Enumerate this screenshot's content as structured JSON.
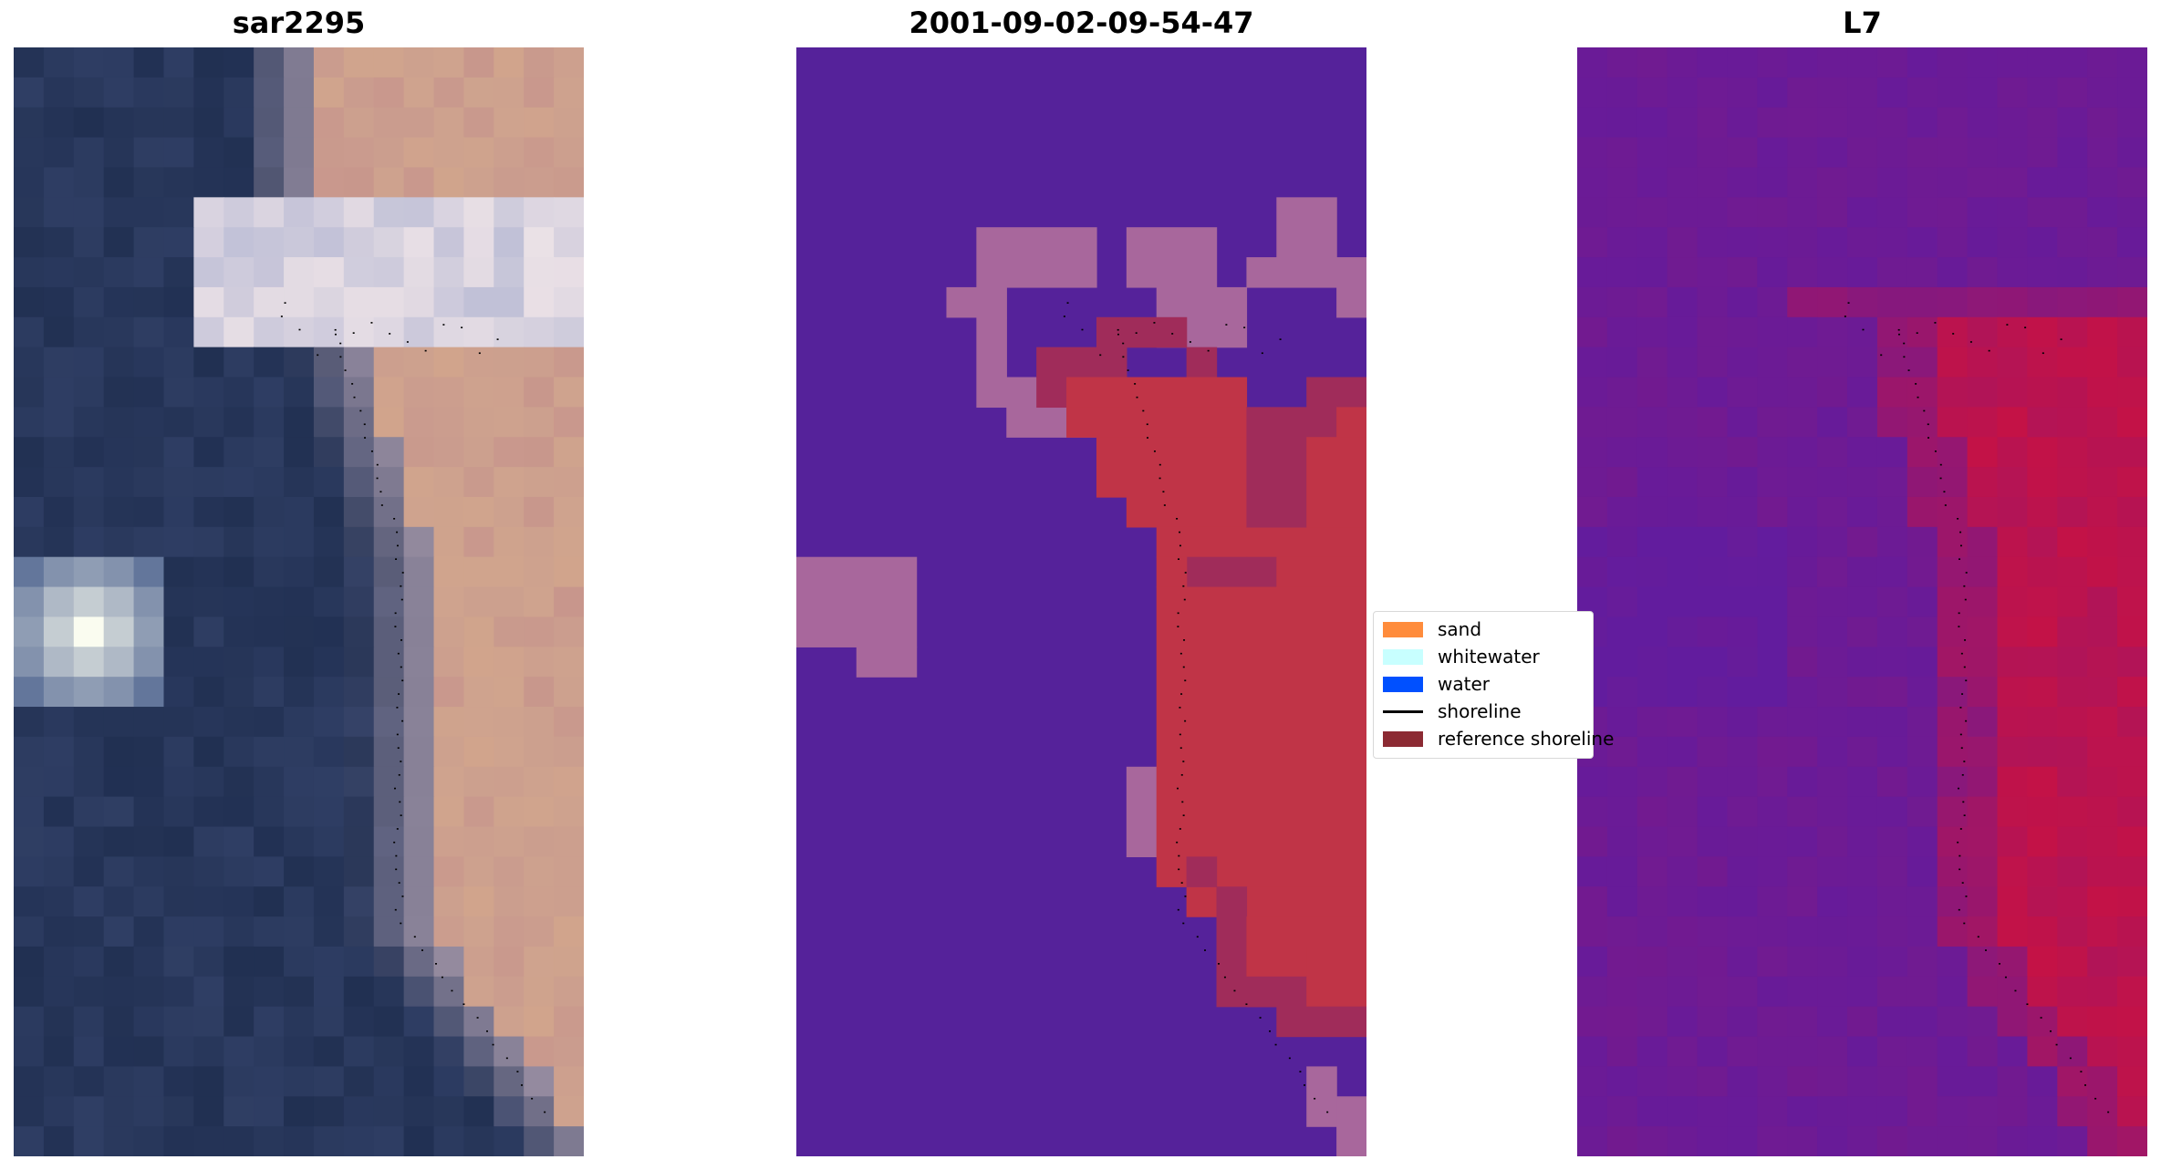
{
  "panels": [
    {
      "title": "sar2295",
      "image": "rgb-satellite-image"
    },
    {
      "title": "2001-09-02-09-54-47",
      "image": "classified-image"
    },
    {
      "title": "L7",
      "image": "mndwi-image"
    }
  ],
  "legend": {
    "items": [
      {
        "label": "sand",
        "kind": "patch",
        "color": "#ff8c3c"
      },
      {
        "label": "whitewater",
        "kind": "patch",
        "color": "#c8ffff"
      },
      {
        "label": "water",
        "kind": "patch",
        "color": "#0050ff"
      },
      {
        "label": "shoreline",
        "kind": "line",
        "color": "#000000"
      },
      {
        "label": "reference shoreline",
        "kind": "patch",
        "color": "#8c2a33"
      }
    ]
  },
  "colors": {
    "class_water": "#55229a",
    "class_mixed": "#a8679c",
    "class_sand": "#c03447",
    "class_dark_sand": "#a02c5a"
  }
}
